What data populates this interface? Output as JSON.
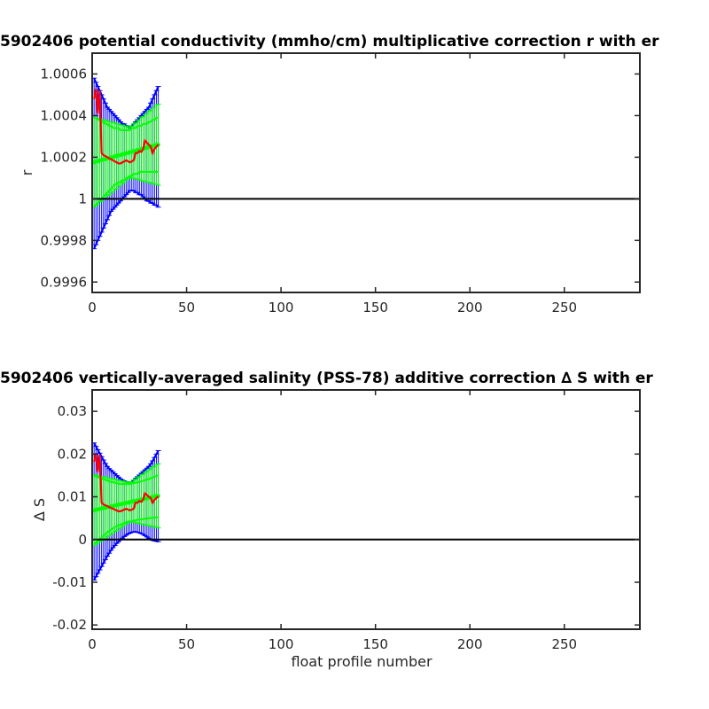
{
  "chart_data": [
    {
      "type": "line",
      "title": "5902406 potential conductivity (mmho/cm) multiplicative correction r with er",
      "xlabel": "",
      "ylabel": "r",
      "xlim": [
        0,
        290
      ],
      "ylim": [
        0.99955,
        1.0007
      ],
      "xticks": [
        0,
        50,
        100,
        150,
        200,
        250
      ],
      "xtick_labels": [
        "0",
        "50",
        "100",
        "150",
        "200",
        "250"
      ],
      "yticks": [
        0.9996,
        0.9998,
        1.0,
        1.0002,
        1.0004,
        1.0006
      ],
      "ytick_labels": [
        "0.9996",
        "0.9998",
        "1",
        "1.0002",
        "1.0004",
        "1.0006"
      ],
      "reference_line": 1.0,
      "colors": {
        "correction": "#ff0000",
        "fit": "#00ff00",
        "error": "#0000ff",
        "reference": "#000000"
      },
      "x": [
        1,
        2,
        3,
        4,
        5,
        6,
        7,
        8,
        9,
        10,
        11,
        12,
        13,
        14,
        15,
        16,
        17,
        18,
        19,
        20,
        21,
        22,
        23,
        24,
        25,
        26,
        27,
        28,
        29,
        30,
        31,
        32,
        33,
        34,
        35
      ],
      "series": [
        {
          "role": "correction",
          "values": [
            1.00048,
            1.00053,
            1.00041,
            1.00052,
            1.00022,
            1.00021,
            1.000205,
            1.0002,
            1.000195,
            1.00019,
            1.000185,
            1.00018,
            1.000175,
            1.00017,
            1.00017,
            1.000175,
            1.00018,
            1.000185,
            1.00018,
            1.000175,
            1.00018,
            1.000185,
            1.00022,
            1.00022,
            1.00023,
            1.000225,
            1.00024,
            1.00028,
            1.00027,
            1.00026,
            1.00025,
            1.00022,
            1.00024,
            1.00025,
            1.00026
          ]
        },
        {
          "role": "fit",
          "values": [
            1.000175,
            1.00018,
            1.00018,
            1.000185,
            1.000185,
            1.00019,
            1.00019,
            1.000195,
            1.000195,
            1.0002,
            1.0002,
            1.000205,
            1.000205,
            1.00021,
            1.00021,
            1.000215,
            1.000215,
            1.00022,
            1.00022,
            1.000225,
            1.000225,
            1.00023,
            1.00023,
            1.000235,
            1.000235,
            1.00024,
            1.00024,
            1.000245,
            1.000245,
            1.00025,
            1.00025,
            1.000255,
            1.000255,
            1.00026,
            1.00026
          ],
          "error": [
            0.000215,
            0.00021,
            0.000205,
            0.0002,
            0.000195,
            0.00019,
            0.000185,
            0.00018,
            0.000175,
            0.00017,
            0.000165,
            0.00016,
            0.000155,
            0.00015,
            0.000145,
            0.00014,
            0.000135,
            0.00013,
            0.000125,
            0.00012,
            0.000125,
            0.00013,
            0.000135,
            0.00014,
            0.000145,
            0.00015,
            0.000155,
            0.00016,
            0.000165,
            0.00017,
            0.000175,
            0.00018,
            0.000185,
            0.00019,
            0.000195
          ]
        }
      ],
      "error_bands": {
        "blue": {
          "upper": [
            1.00058,
            1.00056,
            1.00054,
            1.00052,
            1.0005,
            1.00048,
            1.00046,
            1.00044,
            1.00043,
            1.00042,
            1.00041,
            1.0004,
            1.00039,
            1.00038,
            1.00037,
            1.00036,
            1.00036,
            1.00035,
            1.00035,
            1.00034,
            1.00035,
            1.00036,
            1.00037,
            1.00038,
            1.00039,
            1.0004,
            1.00041,
            1.00042,
            1.00043,
            1.00044,
            1.00046,
            1.00048,
            1.0005,
            1.00052,
            1.00054
          ],
          "lower": [
            0.99976,
            0.99978,
            0.9998,
            0.99982,
            0.99984,
            0.99986,
            0.99988,
            0.9999,
            0.99992,
            0.99994,
            0.99995,
            0.99996,
            0.99997,
            0.99998,
            0.99999,
            1.0,
            1.00001,
            1.00002,
            1.00003,
            1.00004,
            1.00004,
            1.00004,
            1.00003,
            1.00003,
            1.00002,
            1.00002,
            1.00001,
            1.0,
            0.99999,
            0.99999,
            0.99998,
            0.99998,
            0.99997,
            0.99997,
            0.99996
          ]
        },
        "green": {
          "upper": [
            1.00039,
            1.00039,
            1.00038,
            1.00038,
            1.00037,
            1.00037,
            1.00036,
            1.00036,
            1.00035,
            1.00035,
            1.00034,
            1.00034,
            1.00034,
            1.00034,
            1.00033,
            1.00033,
            1.00033,
            1.00033,
            1.00033,
            1.00033,
            1.00034,
            1.00034,
            1.00034,
            1.00035,
            1.00035,
            1.00035,
            1.00036,
            1.00036,
            1.00036,
            1.00037,
            1.00037,
            1.00038,
            1.00038,
            1.00039,
            1.00039
          ],
          "lower": [
            0.99996,
            0.99997,
            0.99998,
            0.99999,
            1.0,
            1.00001,
            1.00002,
            1.00003,
            1.00004,
            1.00005,
            1.00006,
            1.00007,
            1.00007,
            1.00008,
            1.00008,
            1.00009,
            1.00009,
            1.0001,
            1.0001,
            1.00011,
            1.00011,
            1.00012,
            1.00012,
            1.00012,
            1.00013,
            1.00013,
            1.00013,
            1.00013,
            1.00013,
            1.00013,
            1.00013,
            1.00013,
            1.00013,
            1.00013,
            1.00013
          ]
        }
      }
    },
    {
      "type": "line",
      "title": "5902406 vertically-averaged salinity (PSS-78) additive correction ∆ S with er",
      "xlabel": "float profile number",
      "ylabel": "∆ S",
      "xlim": [
        0,
        290
      ],
      "ylim": [
        -0.021,
        0.035
      ],
      "xticks": [
        0,
        50,
        100,
        150,
        200,
        250
      ],
      "xtick_labels": [
        "0",
        "50",
        "100",
        "150",
        "200",
        "250"
      ],
      "yticks": [
        -0.02,
        -0.01,
        0,
        0.01,
        0.02,
        0.03
      ],
      "ytick_labels": [
        "-0.02",
        "-0.01",
        "0",
        "0.01",
        "0.02",
        "0.03"
      ],
      "reference_line": 0,
      "colors": {
        "correction": "#ff0000",
        "fit": "#00ff00",
        "error": "#0000ff",
        "reference": "#000000"
      },
      "x": [
        1,
        2,
        3,
        4,
        5,
        6,
        7,
        8,
        9,
        10,
        11,
        12,
        13,
        14,
        15,
        16,
        17,
        18,
        19,
        20,
        21,
        22,
        23,
        24,
        25,
        26,
        27,
        28,
        29,
        30,
        31,
        32,
        33,
        34,
        35
      ],
      "series": [
        {
          "role": "correction",
          "values": [
            0.0182,
            0.0202,
            0.0158,
            0.0198,
            0.0086,
            0.0082,
            0.008,
            0.0078,
            0.0076,
            0.0074,
            0.0072,
            0.007,
            0.0068,
            0.0066,
            0.0066,
            0.0068,
            0.007,
            0.0072,
            0.007,
            0.0068,
            0.007,
            0.0072,
            0.0086,
            0.0086,
            0.009,
            0.0088,
            0.0094,
            0.0108,
            0.0104,
            0.01,
            0.0097,
            0.0086,
            0.0093,
            0.0097,
            0.0101
          ]
        },
        {
          "role": "fit",
          "values": [
            0.0068,
            0.007,
            0.007,
            0.0072,
            0.0072,
            0.0074,
            0.0074,
            0.0076,
            0.0076,
            0.0078,
            0.0078,
            0.008,
            0.008,
            0.0082,
            0.0082,
            0.0084,
            0.0084,
            0.0086,
            0.0086,
            0.0088,
            0.0088,
            0.009,
            0.009,
            0.0092,
            0.0092,
            0.0094,
            0.0094,
            0.0096,
            0.0096,
            0.0098,
            0.0098,
            0.01,
            0.01,
            0.0102,
            0.0102
          ],
          "error": [
            0.0083,
            0.0081,
            0.0079,
            0.0077,
            0.0075,
            0.0073,
            0.0071,
            0.0069,
            0.0067,
            0.0065,
            0.0063,
            0.0061,
            0.0059,
            0.0057,
            0.0055,
            0.0053,
            0.0051,
            0.0049,
            0.0047,
            0.0045,
            0.0047,
            0.0049,
            0.0051,
            0.0053,
            0.0055,
            0.0057,
            0.0059,
            0.0061,
            0.0063,
            0.0065,
            0.0067,
            0.0069,
            0.0071,
            0.0073,
            0.0075
          ]
        }
      ],
      "error_bands": {
        "blue": {
          "upper": [
            0.0226,
            0.0218,
            0.021,
            0.0202,
            0.0194,
            0.0186,
            0.0178,
            0.0171,
            0.0166,
            0.0162,
            0.0158,
            0.0154,
            0.015,
            0.0146,
            0.0142,
            0.0139,
            0.0137,
            0.0135,
            0.0134,
            0.0133,
            0.0135,
            0.0139,
            0.0143,
            0.0147,
            0.0151,
            0.0155,
            0.0159,
            0.0163,
            0.0167,
            0.0171,
            0.0177,
            0.0184,
            0.0192,
            0.02,
            0.0208
          ],
          "lower": [
            -0.0095,
            -0.0087,
            -0.0079,
            -0.0071,
            -0.0063,
            -0.0055,
            -0.0047,
            -0.0039,
            -0.0032,
            -0.0025,
            -0.0019,
            -0.0014,
            -0.0009,
            -0.0005,
            -0.0001,
            0.0003,
            0.0007,
            0.001,
            0.0013,
            0.0015,
            0.0017,
            0.0018,
            0.0018,
            0.0017,
            0.0016,
            0.0014,
            0.0012,
            0.0009,
            0.0006,
            0.0003,
            0.0,
            -0.0002,
            -0.0003,
            -0.0004,
            -0.0005
          ]
        },
        "green": {
          "upper": [
            0.0148,
            0.0148,
            0.0146,
            0.0145,
            0.0143,
            0.0141,
            0.014,
            0.0138,
            0.0136,
            0.0135,
            0.0134,
            0.0133,
            0.0132,
            0.0131,
            0.013,
            0.013,
            0.013,
            0.013,
            0.013,
            0.013,
            0.0131,
            0.0132,
            0.0133,
            0.0134,
            0.0135,
            0.0136,
            0.0137,
            0.0139,
            0.014,
            0.0142,
            0.0143,
            0.0145,
            0.0147,
            0.0149,
            0.015
          ],
          "lower": [
            -0.0011,
            -0.0007,
            -0.0003,
            0.0001,
            0.0005,
            0.0009,
            0.0013,
            0.0017,
            0.002,
            0.0023,
            0.0026,
            0.0029,
            0.0031,
            0.0033,
            0.0035,
            0.0037,
            0.0039,
            0.004,
            0.0041,
            0.0042,
            0.0043,
            0.0044,
            0.0045,
            0.0046,
            0.0047,
            0.0047,
            0.0048,
            0.0049,
            0.0049,
            0.005,
            0.005,
            0.0051,
            0.0051,
            0.0052,
            0.0052
          ]
        }
      }
    }
  ]
}
